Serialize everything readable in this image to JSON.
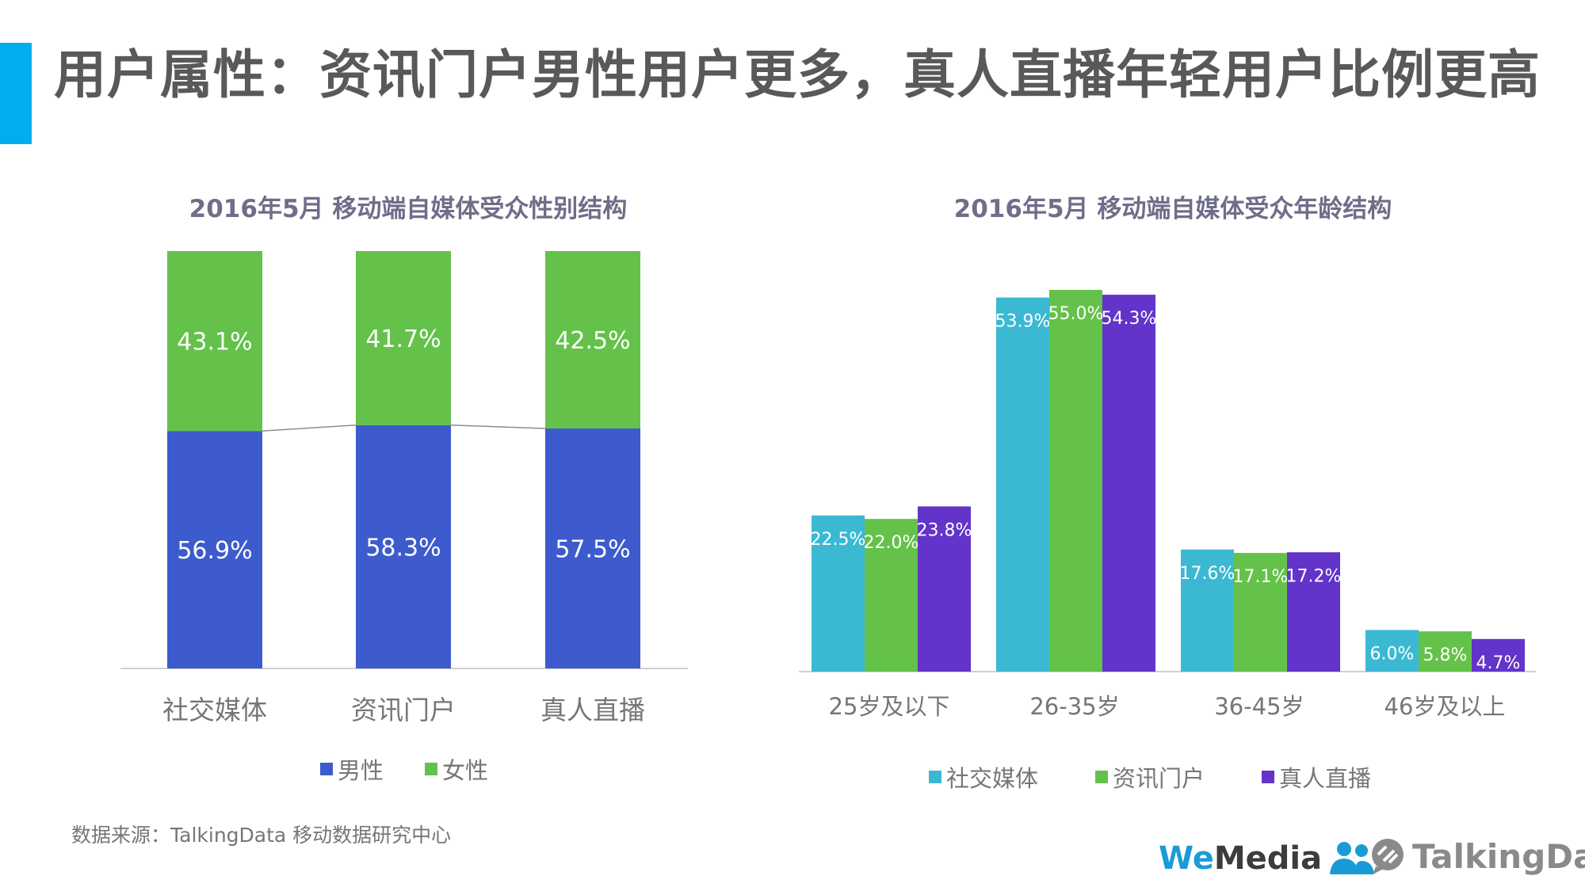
{
  "page": {
    "title": "用户属性：资讯门户男性用户更多，真人直播年轻用户比例更高",
    "source": "数据来源：TalkingData 移动数据研究中心",
    "brand_wemedia_prefix": "We",
    "brand_wemedia_suffix": "Media",
    "brand_talkingdata": "TalkingData"
  },
  "colors": {
    "accent": "#00aeef",
    "male": "#3d5bcc",
    "female": "#64c24a",
    "social": "#3bb9d3",
    "portal": "#64c24a",
    "live": "#6234c9"
  },
  "chart_data": [
    {
      "type": "bar",
      "stacked": true,
      "title": "2016年5月 移动端自媒体受众性别结构",
      "categories": [
        "社交媒体",
        "资讯门户",
        "真人直播"
      ],
      "series": [
        {
          "name": "男性",
          "values": [
            56.9,
            58.3,
            57.5
          ]
        },
        {
          "name": "女性",
          "values": [
            43.1,
            41.7,
            42.5
          ]
        }
      ],
      "ylim": [
        0,
        100
      ],
      "legend": "bottom"
    },
    {
      "type": "bar",
      "title": "2016年5月 移动端自媒体受众年龄结构",
      "categories": [
        "25岁及以下",
        "26-35岁",
        "36-45岁",
        "46岁及以上"
      ],
      "series": [
        {
          "name": "社交媒体",
          "values": [
            22.5,
            53.9,
            17.6,
            6.0
          ]
        },
        {
          "name": "资讯门户",
          "values": [
            22.0,
            55.0,
            17.1,
            5.8
          ]
        },
        {
          "name": "真人直播",
          "values": [
            23.8,
            54.3,
            17.2,
            4.7
          ]
        }
      ],
      "ylim": [
        0,
        60
      ],
      "legend": "bottom"
    }
  ]
}
